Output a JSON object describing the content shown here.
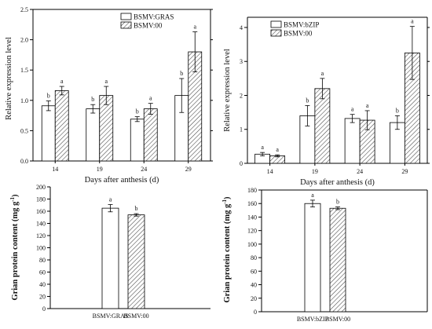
{
  "chart_data": [
    {
      "id": "top-left",
      "type": "bar",
      "title": "",
      "xlabel": "Days after anthesis (d)",
      "ylabel": "Relative expression level",
      "ylim": [
        0,
        2.5
      ],
      "yticks": [
        "0.0",
        "0.5",
        "1.0",
        "1.5",
        "2.0",
        "2.5"
      ],
      "categories": [
        "14",
        "19",
        "24",
        "29"
      ],
      "legend_position": "top-left",
      "series": [
        {
          "name": "BSMV:GRAS",
          "fill": "white",
          "values": [
            0.91,
            0.86,
            0.69,
            1.08
          ],
          "errors": [
            0.08,
            0.07,
            0.04,
            0.28
          ],
          "letters": [
            "b",
            "b",
            "b",
            "b"
          ]
        },
        {
          "name": "BSMV:00",
          "fill": "hatched",
          "values": [
            1.16,
            1.08,
            0.86,
            1.8
          ],
          "errors": [
            0.07,
            0.15,
            0.09,
            0.33
          ],
          "letters": [
            "a",
            "a",
            "a",
            "a"
          ]
        }
      ]
    },
    {
      "id": "top-right",
      "type": "bar",
      "title": "",
      "xlabel": "Days after anthesis (d)",
      "ylabel": "Relative expression level",
      "ylim": [
        0,
        4.3
      ],
      "yticks": [
        "0",
        "1",
        "2",
        "3",
        "4"
      ],
      "categories": [
        "14",
        "19",
        "24",
        "29"
      ],
      "legend_position": "top-left",
      "series": [
        {
          "name": "BSMV:bZIP",
          "fill": "white",
          "values": [
            0.27,
            1.4,
            1.32,
            1.2
          ],
          "errors": [
            0.05,
            0.3,
            0.12,
            0.2
          ],
          "letters": [
            "a",
            "b",
            "a",
            "b"
          ]
        },
        {
          "name": "BSMV:00",
          "fill": "hatched",
          "values": [
            0.22,
            2.2,
            1.27,
            3.25
          ],
          "errors": [
            0.03,
            0.3,
            0.28,
            0.78
          ],
          "letters": [
            "a",
            "a",
            "a",
            "a"
          ]
        }
      ]
    },
    {
      "id": "bottom-left",
      "type": "bar",
      "title": "",
      "xlabel": "",
      "ylabel_main": "Grian protein content (mg g",
      "ylabel_sup": "-1",
      "ylabel_tail": ")",
      "ylim": [
        0,
        200
      ],
      "yticks": [
        "0",
        "20",
        "40",
        "60",
        "80",
        "100",
        "120",
        "140",
        "160",
        "180",
        "200"
      ],
      "categories": [
        "BSMV:GRAS",
        "BSMV:00"
      ],
      "values": [
        165,
        154
      ],
      "errors": [
        6,
        2
      ],
      "fills": [
        "white",
        "hatched"
      ],
      "letters": [
        "a",
        "b"
      ]
    },
    {
      "id": "bottom-right",
      "type": "bar",
      "title": "",
      "xlabel": "",
      "ylabel_main": "Grian protein content (mg g",
      "ylabel_sup": "-1",
      "ylabel_tail": ")",
      "ylim": [
        0,
        180
      ],
      "yticks": [
        "0",
        "20",
        "40",
        "60",
        "80",
        "100",
        "120",
        "140",
        "160",
        "180"
      ],
      "categories": [
        "BSMV:bZIP",
        "BSMV:00"
      ],
      "values": [
        160,
        153
      ],
      "errors": [
        5,
        2
      ],
      "fills": [
        "white",
        "hatched"
      ],
      "letters": [
        "a",
        "b"
      ]
    }
  ]
}
